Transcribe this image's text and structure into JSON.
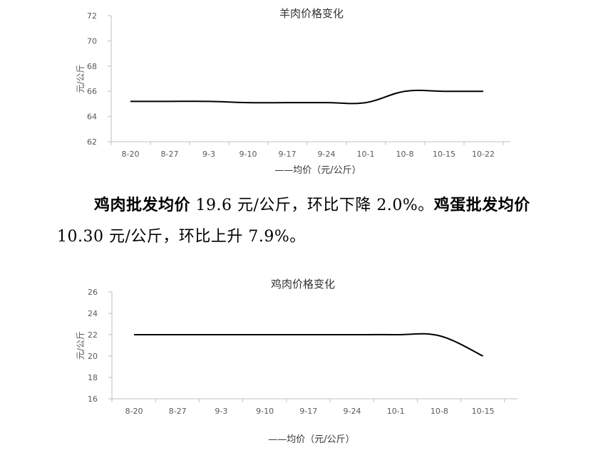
{
  "chart_data": [
    {
      "type": "line",
      "title": "羊肉价格变化",
      "ylabel": "元/公斤",
      "legend": "——均价（元/公斤）",
      "categories": [
        "8-20",
        "8-27",
        "9-3",
        "9-10",
        "9-17",
        "9-24",
        "10-1",
        "10-8",
        "10-15",
        "10-22"
      ],
      "series": [
        {
          "name": "均价（元/公斤）",
          "values": [
            65.2,
            65.2,
            65.2,
            65.1,
            65.1,
            65.1,
            65.1,
            66.0,
            66.0,
            66.0
          ]
        }
      ],
      "ylim": [
        62,
        72
      ],
      "yticks": [
        "62",
        "64",
        "66",
        "68",
        "70",
        "72"
      ]
    },
    {
      "type": "line",
      "title": "鸡肉价格变化",
      "ylabel": "元/公斤",
      "legend": "——均价（元/公斤）",
      "categories": [
        "8-20",
        "8-27",
        "9-3",
        "9-10",
        "9-17",
        "9-24",
        "10-1",
        "10-8",
        "10-15"
      ],
      "series": [
        {
          "name": "均价（元/公斤）",
          "values": [
            22.0,
            22.0,
            22.0,
            22.0,
            22.0,
            22.0,
            22.0,
            21.9,
            20.0
          ]
        }
      ],
      "ylim": [
        16,
        26
      ],
      "yticks": [
        "16",
        "18",
        "20",
        "22",
        "24",
        "26"
      ]
    }
  ],
  "text": {
    "p1_bold1": "鸡肉批发均价",
    "p1_normal1": " 19.6 元/公斤，环比下降 2.0%。",
    "p1_bold2": "鸡蛋批发均价",
    "p1_normal2": " 10.30 元/公斤，环比上升 7.9%。"
  }
}
